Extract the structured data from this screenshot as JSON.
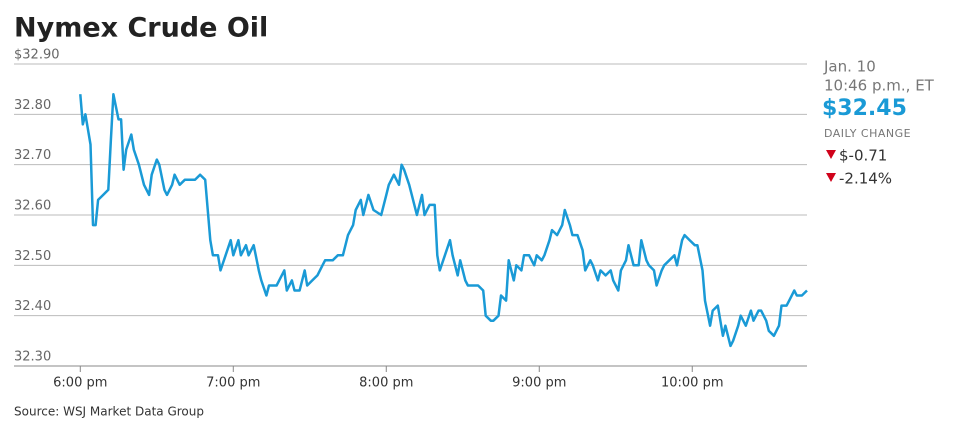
{
  "chart_data": {
    "type": "line",
    "title": "Nymex Crude Oil",
    "source": "Source: WSJ Market Data Group",
    "sidebar": {
      "date": "Jan. 10",
      "time": "10:46 p.m., ET",
      "price": "$32.45",
      "change_label": "DAILY CHANGE",
      "change": "$-0.71",
      "change_pct": "-2.14%"
    },
    "xlim": [
      -26,
      285
    ],
    "xticks": [
      {
        "value": 0,
        "label": "6:00 pm"
      },
      {
        "value": 60,
        "label": "7:00 pm"
      },
      {
        "value": 120,
        "label": "8:00 pm"
      },
      {
        "value": 180,
        "label": "9:00 pm"
      },
      {
        "value": 240,
        "label": "10:00 pm"
      }
    ],
    "ylim": [
      32.3,
      32.9
    ],
    "yticks": [
      {
        "value": 32.9,
        "label": "$32.90"
      },
      {
        "value": 32.8,
        "label": "32.80"
      },
      {
        "value": 32.7,
        "label": "32.70"
      },
      {
        "value": 32.6,
        "label": "32.60"
      },
      {
        "value": 32.5,
        "label": "32.50"
      },
      {
        "value": 32.4,
        "label": "32.40"
      },
      {
        "value": 32.3,
        "label": "32.30"
      }
    ],
    "grid": true,
    "color": "#1a9ad6",
    "x": [
      0,
      1,
      2,
      4,
      5,
      6,
      7,
      9,
      11,
      12,
      13,
      15,
      16,
      17,
      18,
      20,
      21,
      23,
      25,
      27,
      28,
      30,
      31,
      33,
      34,
      36,
      37,
      39,
      41,
      45,
      47,
      49,
      51,
      52,
      54,
      55,
      57,
      59,
      60,
      62,
      63,
      65,
      66,
      68,
      70,
      71,
      73,
      74,
      77,
      78,
      80,
      81,
      83,
      84,
      86,
      88,
      89,
      91,
      93,
      95,
      96,
      99,
      101,
      103,
      105,
      107,
      108,
      110,
      111,
      113,
      115,
      118,
      120,
      121,
      123,
      125,
      126,
      127,
      129,
      130,
      132,
      134,
      135,
      137,
      139,
      140,
      141,
      143,
      145,
      146,
      148,
      149,
      151,
      152,
      154,
      156,
      158,
      159,
      161,
      162,
      164,
      165,
      167,
      168,
      170,
      171,
      173,
      174,
      176,
      178,
      179,
      181,
      182,
      184,
      185,
      187,
      189,
      190,
      192,
      193,
      195,
      197,
      198,
      200,
      201,
      203,
      204,
      206,
      208,
      209,
      211,
      212,
      214,
      215,
      217,
      219,
      220,
      222,
      223,
      225,
      226,
      228,
      229,
      231,
      233,
      234,
      236,
      237,
      239,
      241,
      242,
      244,
      245,
      247,
      248,
      250,
      252,
      253,
      255,
      256,
      258,
      259,
      261,
      263,
      264,
      266,
      267,
      269,
      270,
      272,
      274,
      275,
      277,
      278,
      280,
      281,
      283,
      285
    ],
    "values": [
      32.84,
      32.78,
      32.8,
      32.74,
      32.58,
      32.58,
      32.63,
      32.64,
      32.65,
      32.75,
      32.84,
      32.79,
      32.79,
      32.69,
      32.73,
      32.76,
      32.73,
      32.7,
      32.66,
      32.64,
      32.68,
      32.71,
      32.7,
      32.65,
      32.64,
      32.66,
      32.68,
      32.66,
      32.67,
      32.67,
      32.68,
      32.67,
      32.55,
      32.52,
      32.52,
      32.49,
      32.52,
      32.55,
      32.52,
      32.55,
      32.52,
      32.54,
      32.52,
      32.54,
      32.49,
      32.47,
      32.44,
      32.46,
      32.46,
      32.47,
      32.49,
      32.45,
      32.47,
      32.45,
      32.45,
      32.49,
      32.46,
      32.47,
      32.48,
      32.5,
      32.51,
      32.51,
      32.52,
      32.52,
      32.56,
      32.58,
      32.61,
      32.63,
      32.6,
      32.64,
      32.61,
      32.6,
      32.64,
      32.66,
      32.68,
      32.66,
      32.7,
      32.69,
      32.66,
      32.64,
      32.6,
      32.64,
      32.6,
      32.62,
      32.62,
      32.52,
      32.49,
      32.52,
      32.55,
      32.52,
      32.48,
      32.51,
      32.47,
      32.46,
      32.46,
      32.46,
      32.45,
      32.4,
      32.39,
      32.39,
      32.4,
      32.44,
      32.43,
      32.51,
      32.47,
      32.5,
      32.49,
      32.52,
      32.52,
      32.5,
      32.52,
      32.51,
      32.52,
      32.55,
      32.57,
      32.56,
      32.58,
      32.61,
      32.58,
      32.56,
      32.56,
      32.53,
      32.49,
      32.51,
      32.5,
      32.47,
      32.49,
      32.48,
      32.49,
      32.47,
      32.45,
      32.49,
      32.51,
      32.54,
      32.5,
      32.5,
      32.55,
      32.51,
      32.5,
      32.49,
      32.46,
      32.49,
      32.5,
      32.51,
      32.52,
      32.5,
      32.55,
      32.56,
      32.55,
      32.54,
      32.54,
      32.49,
      32.43,
      32.38,
      32.41,
      32.42,
      32.36,
      32.38,
      32.34,
      32.35,
      32.38,
      32.4,
      32.38,
      32.41,
      32.39,
      32.41,
      32.41,
      32.39,
      32.37,
      32.36,
      32.38,
      32.42,
      32.42,
      32.43,
      32.45,
      32.44,
      32.44,
      32.45
    ]
  }
}
